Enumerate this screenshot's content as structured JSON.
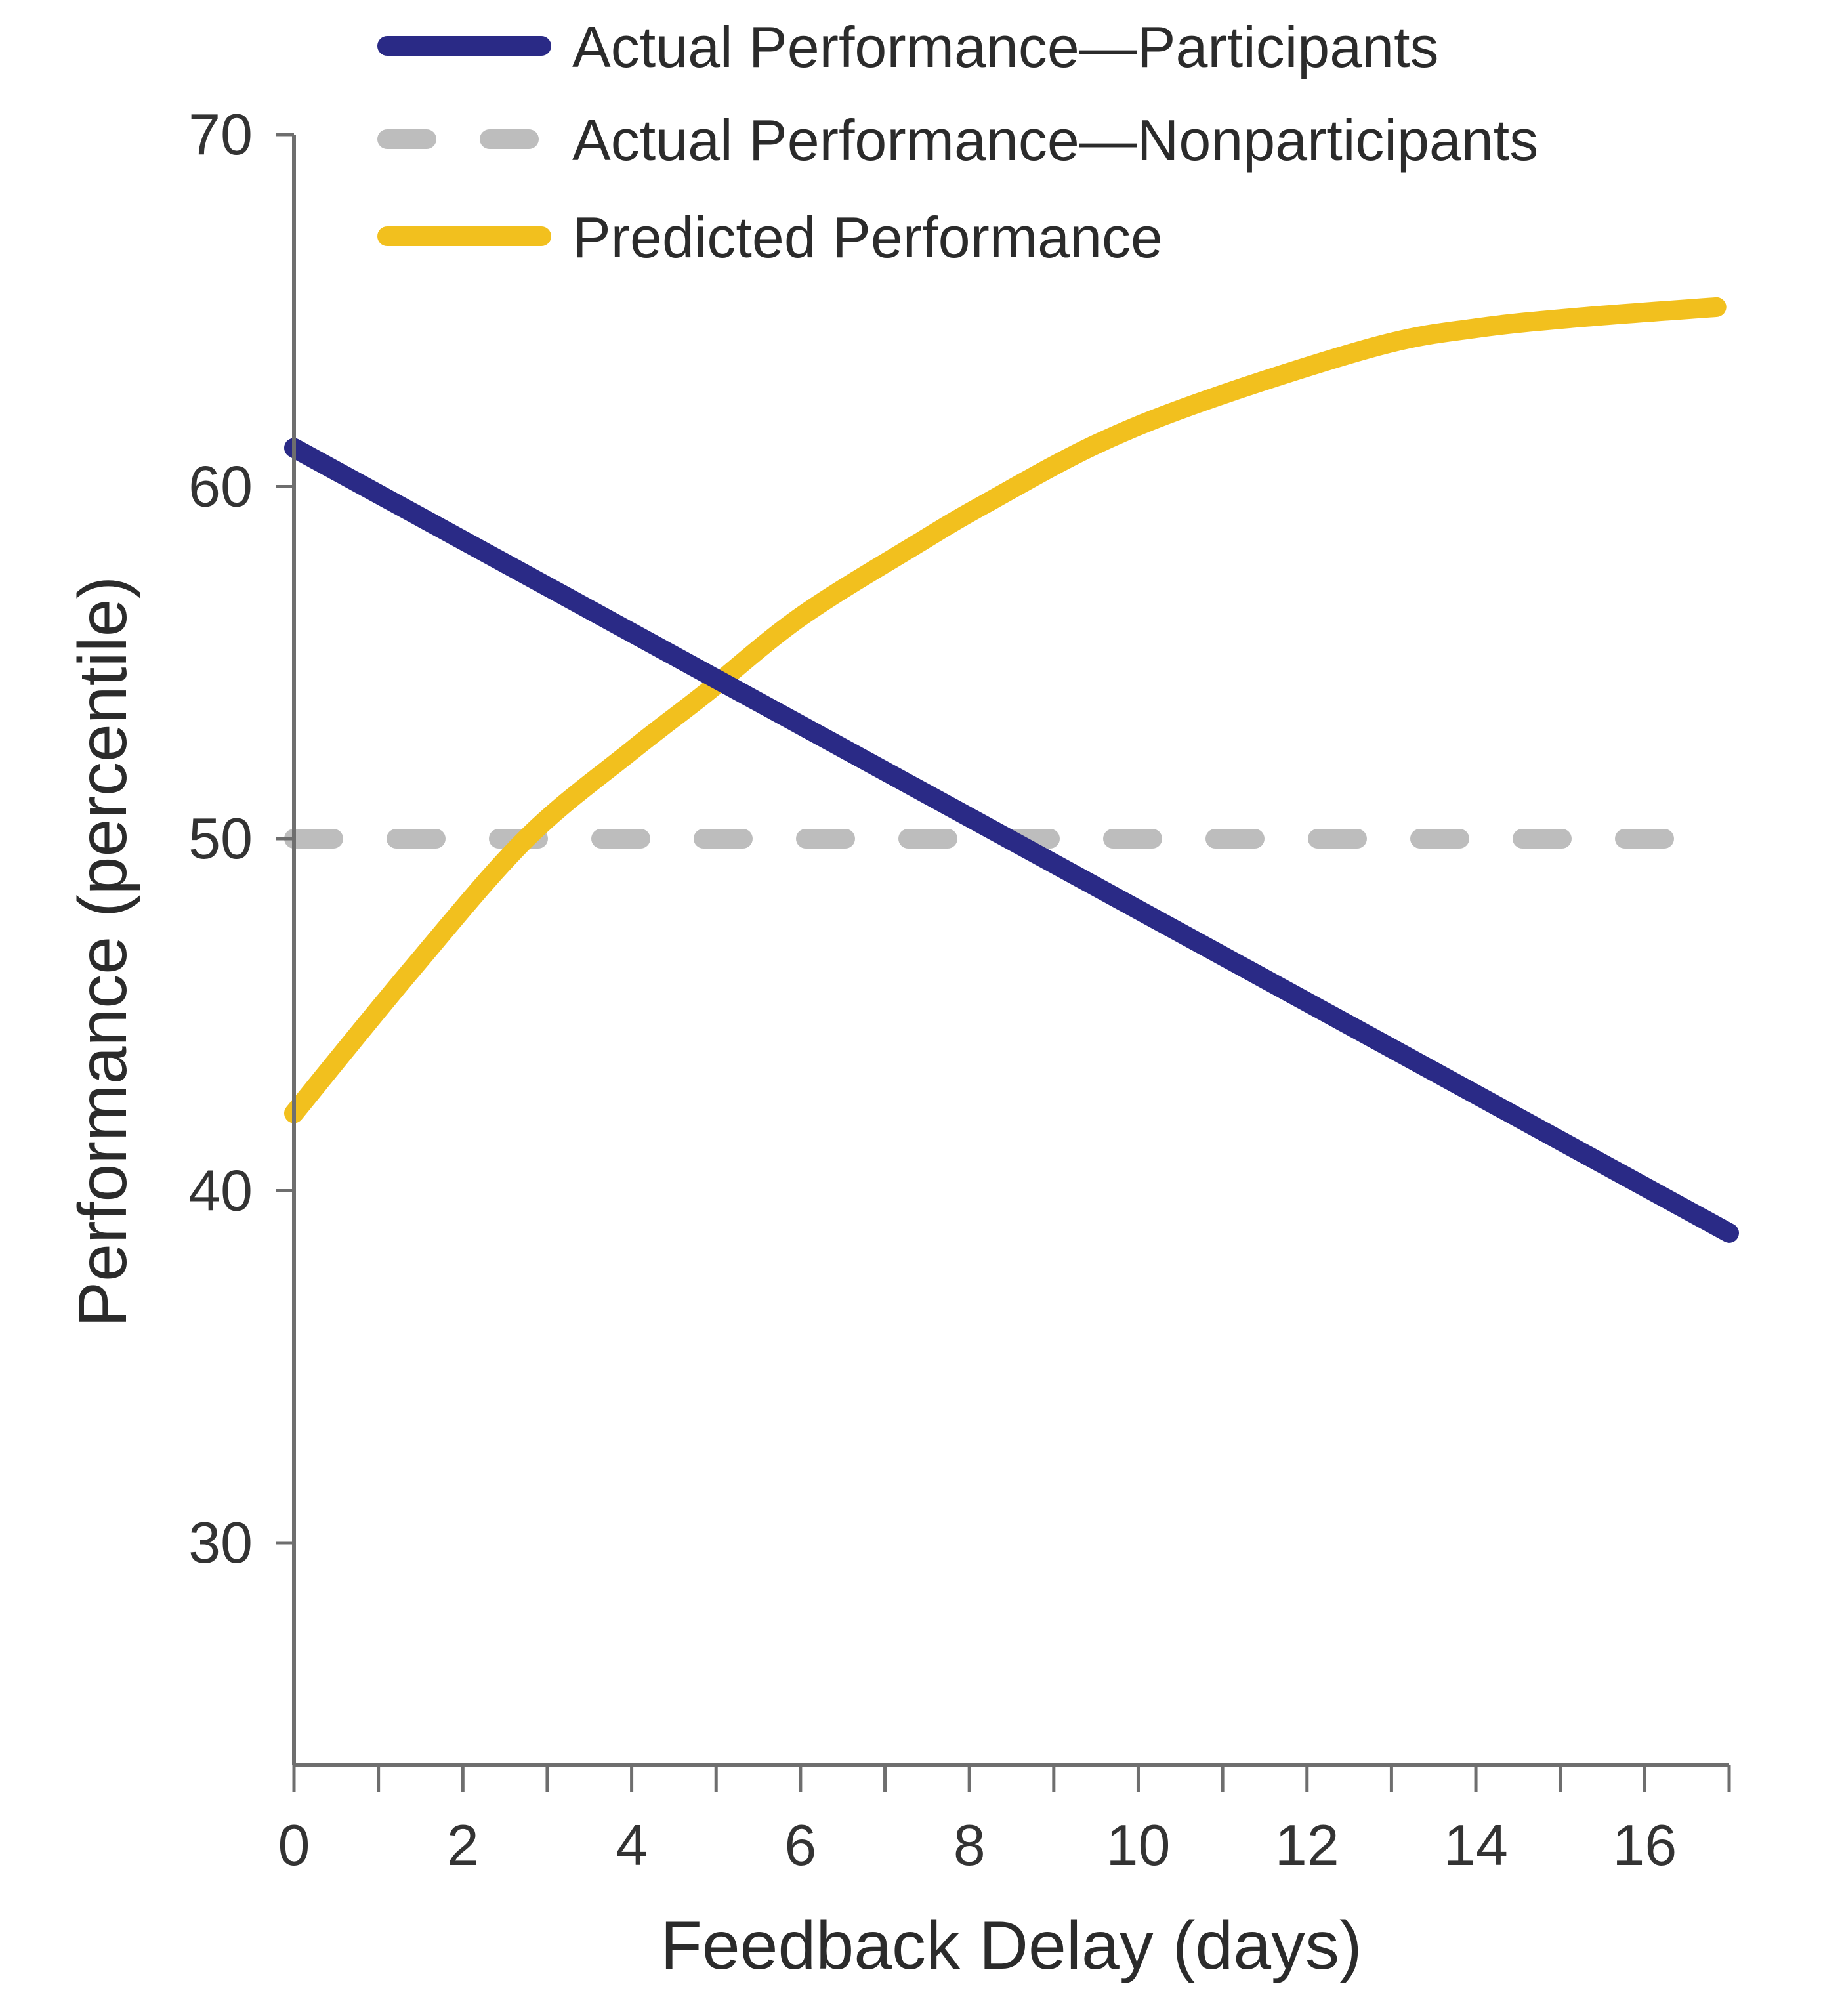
{
  "chart_data": {
    "type": "line",
    "title": "",
    "xlabel": "Feedback Delay (days)",
    "ylabel": "Performance (percentile)",
    "xlim": [
      0,
      17
    ],
    "ylim": [
      23.7,
      70
    ],
    "x_ticks": [
      0,
      1,
      2,
      3,
      4,
      5,
      6,
      7,
      8,
      9,
      10,
      11,
      12,
      13,
      14,
      15,
      16,
      17
    ],
    "x_tick_labels": [
      "0",
      "2",
      "4",
      "6",
      "8",
      "10",
      "12",
      "14",
      "16"
    ],
    "x_tick_label_values": [
      0,
      2,
      4,
      6,
      8,
      10,
      12,
      14,
      16
    ],
    "y_ticks": [
      30,
      40,
      50,
      60,
      70
    ],
    "y_tick_labels": [
      "30",
      "40",
      "50",
      "60",
      "70"
    ],
    "grid": false,
    "legend_position": "top",
    "series": [
      {
        "name": "Actual Performance—Participants",
        "color": "#2a2a86",
        "style": "solid",
        "x": [
          0,
          17
        ],
        "y": [
          61.1,
          38.8
        ]
      },
      {
        "name": "Actual Performance—Nonparticipants",
        "color": "#bdbdbd",
        "style": "dashed",
        "x": [
          0,
          16.5
        ],
        "y": [
          50,
          50
        ]
      },
      {
        "name": "Predicted Performance",
        "color": "#f2c01e",
        "style": "solid",
        "x": [
          0,
          1.4,
          2.75,
          4.0,
          4.86,
          6.0,
          7.4,
          8.18,
          9.5,
          10.86,
          12.85,
          14.0,
          15.2,
          16.85
        ],
        "y": [
          42.2,
          46.3,
          50.0,
          52.5,
          54.1,
          56.3,
          58.4,
          59.5,
          61.2,
          62.5,
          64.0,
          64.5,
          64.8,
          65.1
        ]
      }
    ]
  }
}
